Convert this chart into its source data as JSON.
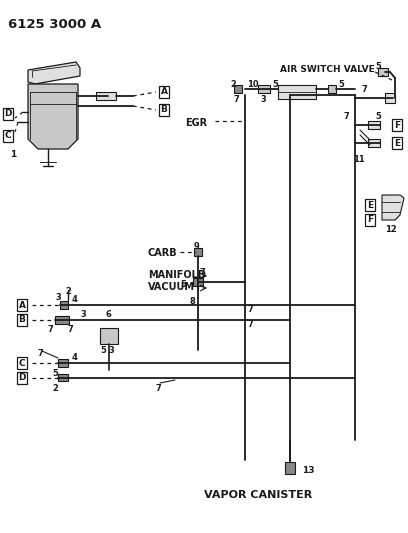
{
  "title": "6125 3000 A",
  "bg_color": "#ffffff",
  "lc": "#1a1a1a",
  "gray_fill": "#c8c8c8",
  "dark_fill": "#888888",
  "light_fill": "#e0e0e0",
  "figw": 4.08,
  "figh": 5.33,
  "dpi": 100,
  "labels": {
    "air_switch_valve": "AIR SWITCH VALVE",
    "egr": "EGR",
    "carb": "CARB",
    "manifold_vacuum_1": "MANIFOLD",
    "manifold_vacuum_2": "VACUUM",
    "vapor_canister": "VAPOR CANISTER"
  }
}
